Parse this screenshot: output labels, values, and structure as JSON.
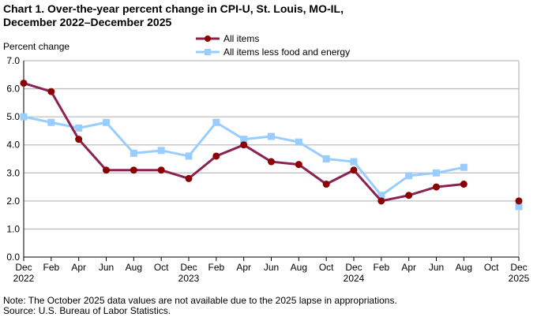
{
  "chart_data": {
    "type": "line",
    "title_line1": "Chart 1. Over-the-year percent change in CPI-U, St. Louis, MO-IL,",
    "title_line2": "December 2022–December 2025",
    "ylabel": "Percent change",
    "ylim": [
      0,
      7
    ],
    "yticks": [
      "0.0",
      "1.0",
      "2.0",
      "3.0",
      "4.0",
      "5.0",
      "6.0",
      "7.0"
    ],
    "grid": true,
    "legend_placement": "top-center",
    "x": [
      "Dec 2022",
      "Feb 2023",
      "Apr 2023",
      "Jun 2023",
      "Aug 2023",
      "Oct 2023",
      "Dec 2023",
      "Feb 2024",
      "Apr 2024",
      "Jun 2024",
      "Aug 2024",
      "Oct 2024",
      "Dec 2024",
      "Feb 2025",
      "Apr 2025",
      "Jun 2025",
      "Aug 2025",
      "Oct 2025",
      "Dec 2025"
    ],
    "xtick_month": [
      "Dec",
      "Feb",
      "Apr",
      "Jun",
      "Aug",
      "Oct",
      "Dec",
      "Feb",
      "Apr",
      "Jun",
      "Aug",
      "Oct",
      "Dec",
      "Feb",
      "Apr",
      "Jun",
      "Aug",
      "Oct",
      "Dec"
    ],
    "xtick_year": [
      "2022",
      "",
      "",
      "",
      "",
      "",
      "2023",
      "",
      "",
      "",
      "",
      "",
      "2024",
      "",
      "",
      "",
      "",
      "",
      "2025"
    ],
    "series": [
      {
        "name": "All items",
        "color": "#8b2252",
        "marker": "circle",
        "marker_color": "#8b0000",
        "values": [
          6.2,
          5.9,
          4.2,
          3.1,
          3.1,
          3.1,
          2.8,
          3.6,
          4.0,
          3.4,
          3.3,
          2.6,
          3.1,
          2.0,
          2.2,
          2.5,
          2.6,
          null,
          2.0
        ]
      },
      {
        "name": "All items less food and energy",
        "color": "#99ccff",
        "marker": "square",
        "marker_color": "#99ccff",
        "values": [
          5.0,
          4.8,
          4.6,
          4.8,
          3.7,
          3.8,
          3.6,
          4.8,
          4.2,
          4.3,
          4.1,
          3.5,
          3.4,
          2.2,
          2.9,
          3.0,
          3.2,
          null,
          1.8
        ]
      }
    ],
    "note": "Note: The October 2025 data values  are not available  due to the 2025 lapse in appropriations.",
    "source": "Source: U.S. Bureau of Labor Statistics."
  }
}
